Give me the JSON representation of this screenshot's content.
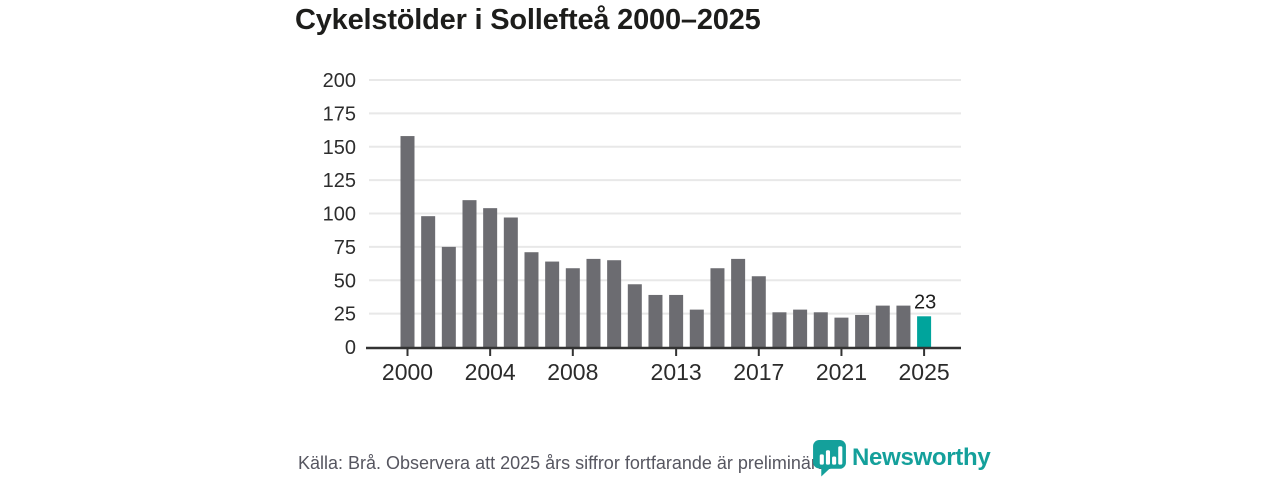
{
  "page": {
    "title": "Cykelstölder i Sollefteå 2000–2025"
  },
  "chart_data": {
    "type": "bar",
    "title": "Cykelstölder i Sollefteå 2000–2025",
    "categories": [
      2000,
      2001,
      2002,
      2003,
      2004,
      2005,
      2006,
      2007,
      2008,
      2009,
      2010,
      2011,
      2012,
      2013,
      2014,
      2015,
      2016,
      2017,
      2018,
      2019,
      2020,
      2021,
      2022,
      2023,
      2024,
      2025
    ],
    "values": [
      158,
      98,
      75,
      110,
      104,
      97,
      71,
      64,
      59,
      66,
      65,
      47,
      39,
      39,
      28,
      59,
      66,
      53,
      26,
      28,
      26,
      22,
      24,
      31,
      31,
      23
    ],
    "highlight_category": 2025,
    "highlight_value_label": "23",
    "xlabel": "",
    "ylabel": "",
    "ylim": [
      0,
      200
    ],
    "yticks": [
      0,
      25,
      50,
      75,
      100,
      125,
      150,
      175,
      200
    ],
    "xticks": [
      2000,
      2004,
      2008,
      2013,
      2017,
      2021,
      2025
    ],
    "grid": "horizontal-only",
    "legend": "none",
    "colors": {
      "bar": "#6c6c71",
      "highlight_bar": "#00a49c",
      "gridline": "#e8e8e8",
      "axis_line": "#333333",
      "y_tick_label": "#2d2d2d",
      "x_tick_label": "#2b2b2b",
      "value_label": "#1d1d1d"
    }
  },
  "footer": {
    "source_note": "Källa: Brå. Observera att 2025 års siffror fortfarande är preliminära."
  },
  "branding": {
    "logo_text": "Newsworthy",
    "logo_color": "#14a09b",
    "logo_icon": "speech-bubble-bar-chart-icon"
  }
}
